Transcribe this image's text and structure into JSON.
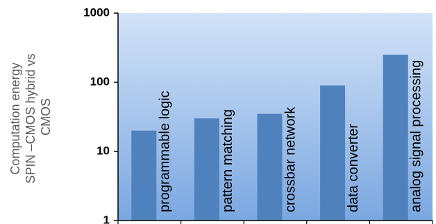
{
  "chart_data": {
    "type": "bar",
    "title": "",
    "xlabel": "",
    "ylabel_lines": [
      "Computation energy",
      "SPIN –CMOS hybrid vs",
      "CMOS"
    ],
    "yscale": "log",
    "ylim": [
      1,
      1000
    ],
    "yticks": [
      1,
      10,
      100,
      1000
    ],
    "ytick_labels": [
      "1",
      "10",
      "100",
      "1000"
    ],
    "grid": false,
    "categories": [
      "programmable logic",
      "pattern matching",
      "crossbar  network",
      "data converter",
      "analog signal processing"
    ],
    "values": [
      20,
      30,
      35,
      90,
      250
    ],
    "colors": {
      "bar": "#4F81BD",
      "plot_bg_top": "#D3E3F8",
      "plot_bg_bottom": "#7BA7E0",
      "axis": "#000000"
    }
  }
}
